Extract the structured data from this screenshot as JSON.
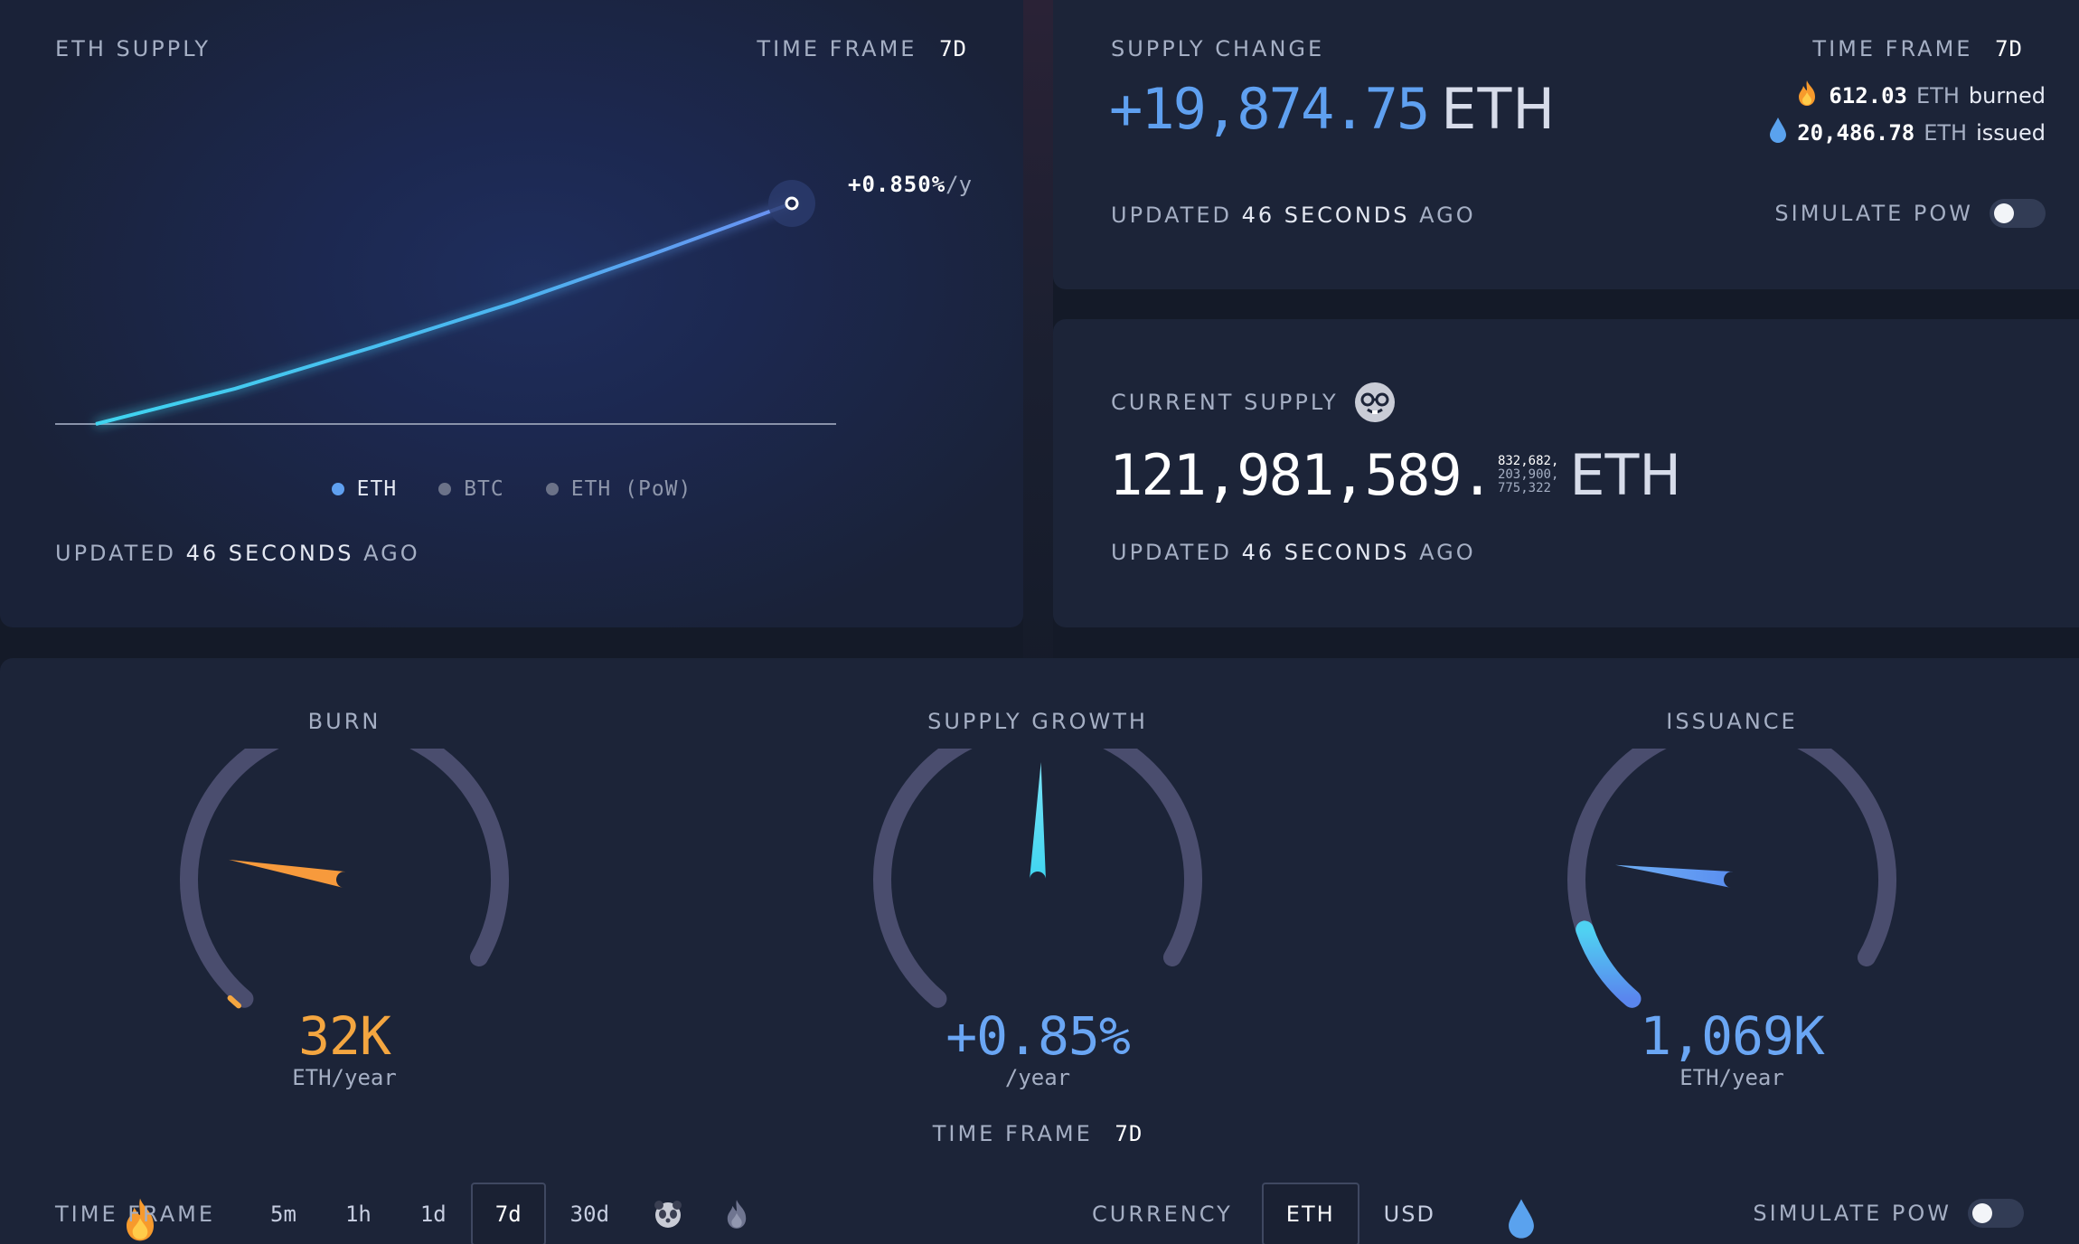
{
  "eth_supply": {
    "title": "ETH SUPPLY",
    "time_frame_label": "TIME FRAME",
    "time_frame_value": "7d",
    "growth_label": "+0.850%",
    "growth_suffix": "/y",
    "legend": [
      "ETH",
      "BTC",
      "ETH (PoW)"
    ],
    "updated_prefix": "UPDATED",
    "updated_value": "46 SECONDS",
    "updated_suffix": "AGO",
    "chart_data": {
      "type": "line",
      "series": [
        {
          "name": "ETH",
          "values": [
            0,
            0.16,
            0.35,
            0.55,
            0.77,
            1.0
          ]
        }
      ],
      "x": [
        0,
        1,
        2,
        3,
        4,
        5
      ]
    }
  },
  "supply_change": {
    "title": "SUPPLY CHANGE",
    "time_frame_label": "TIME FRAME",
    "time_frame_value": "7d",
    "amount": "+19,874.75",
    "unit": "ETH",
    "burned_value": "612.03",
    "burned_unit": "ETH",
    "burned_word": "burned",
    "issued_value": "20,486.78",
    "issued_unit": "ETH",
    "issued_word": "issued",
    "updated_prefix": "UPDATED",
    "updated_value": "46 SECONDS",
    "updated_suffix": "AGO",
    "simulate_label": "SIMULATE PoW"
  },
  "current_supply": {
    "title": "CURRENT SUPPLY",
    "amount": "121,981,589.",
    "decimals": [
      "832,682,",
      "203,900,",
      "775,322"
    ],
    "unit": "ETH",
    "updated_prefix": "UPDATED",
    "updated_value": "46 SECONDS",
    "updated_suffix": "AGO"
  },
  "gauges": {
    "burn": {
      "title": "BURN",
      "value": "32K",
      "unit": "ETH/year",
      "color": "#f4a640",
      "level": 0.03
    },
    "supply_growth": {
      "title": "SUPPLY GROWTH",
      "value": "+0.85%",
      "unit": "/year",
      "time_frame_label": "TIME FRAME",
      "time_frame_value": "7d",
      "color": "#6aa6f4",
      "level": 0.56
    },
    "issuance": {
      "title": "ISSUANCE",
      "value": "1,069K",
      "unit": "ETH/year",
      "color": "#6aa6f4",
      "level": 0.12
    }
  },
  "bottom_bar": {
    "time_frame_label": "TIME FRAME",
    "time_frames": [
      "5m",
      "1h",
      "1d",
      "7d",
      "30d"
    ],
    "active_time_frame": "7d",
    "currency_label": "CURRENCY",
    "currencies": [
      "ETH",
      "USD"
    ],
    "active_currency": "ETH",
    "simulate_label": "SIMULATE PoW"
  },
  "colors": {
    "accent_blue": "#5fa0f0",
    "accent_cyan": "#3fd5f0",
    "burn_orange": "#f4a640",
    "card_bg": "#1c2438",
    "gauge_track": "#4a4d6e"
  },
  "icons": [
    "fire-icon",
    "droplet-icon",
    "nerd-face-icon",
    "panda-icon",
    "flame-outline-icon"
  ]
}
